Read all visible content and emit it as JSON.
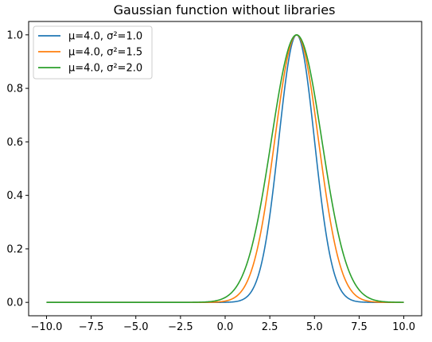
{
  "chart_data": {
    "type": "line",
    "title": "Gaussian function without libraries",
    "xlabel": "",
    "ylabel": "",
    "xlim": [
      -11.0,
      11.0
    ],
    "ylim": [
      -0.05,
      1.05
    ],
    "x_ticks": [
      -10.0,
      -7.5,
      -5.0,
      -2.5,
      0.0,
      2.5,
      5.0,
      7.5,
      10.0
    ],
    "x_tick_labels": [
      "−10.0",
      "−7.5",
      "−5.0",
      "−2.5",
      "0.0",
      "2.5",
      "5.0",
      "7.5",
      "10.0"
    ],
    "y_ticks": [
      0.0,
      0.2,
      0.4,
      0.6,
      0.8,
      1.0
    ],
    "y_tick_labels": [
      "0.0",
      "0.2",
      "0.4",
      "0.6",
      "0.8",
      "1.0"
    ],
    "x_domain": [
      -10.0,
      10.0
    ],
    "grid": false,
    "legend_position": "top-left",
    "series": [
      {
        "name": "μ=4.0, σ²=1.0",
        "mu": 4.0,
        "sigma2": 1.0,
        "color": "#1f77b4"
      },
      {
        "name": "μ=4.0, σ²=1.5",
        "mu": 4.0,
        "sigma2": 1.5,
        "color": "#ff7f0e"
      },
      {
        "name": "μ=4.0, σ²=2.0",
        "mu": 4.0,
        "sigma2": 2.0,
        "color": "#2ca02c"
      }
    ]
  }
}
